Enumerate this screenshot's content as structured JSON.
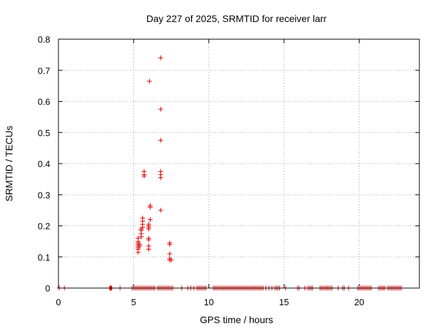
{
  "chart_data": {
    "type": "scatter",
    "title": "Day 227 of 2025, SRMTID for receiver larr",
    "xlabel": "GPS time / hours",
    "ylabel": "SRMTID / TECUs",
    "xlim": [
      0,
      24
    ],
    "ylim": [
      0,
      0.8
    ],
    "x_ticks": [
      0,
      5,
      10,
      15,
      20
    ],
    "x_tick_labels": [
      "0",
      "5",
      "10",
      "15",
      "20"
    ],
    "y_ticks": [
      0,
      0.1,
      0.2,
      0.3,
      0.4,
      0.5,
      0.6,
      0.7,
      0.8
    ],
    "y_tick_labels": [
      "0",
      "0.1",
      "0.2",
      "0.3",
      "0.4",
      "0.5",
      "0.6",
      "0.7",
      "0.8"
    ],
    "grid": true,
    "marker": "plus",
    "color": "#dd0000",
    "series": [
      {
        "name": "SRMTID",
        "points": [
          [
            5.3,
            0.115
          ],
          [
            5.3,
            0.125
          ],
          [
            5.3,
            0.13
          ],
          [
            5.3,
            0.135
          ],
          [
            5.3,
            0.14
          ],
          [
            5.3,
            0.145
          ],
          [
            5.3,
            0.15
          ],
          [
            5.3,
            0.16
          ],
          [
            5.4,
            0.135
          ],
          [
            5.4,
            0.14
          ],
          [
            5.5,
            0.165
          ],
          [
            5.5,
            0.175
          ],
          [
            5.5,
            0.185
          ],
          [
            5.5,
            0.19
          ],
          [
            5.6,
            0.195
          ],
          [
            5.6,
            0.205
          ],
          [
            5.6,
            0.215
          ],
          [
            5.6,
            0.225
          ],
          [
            5.7,
            0.36
          ],
          [
            5.7,
            0.365
          ],
          [
            5.7,
            0.375
          ],
          [
            6.0,
            0.125
          ],
          [
            6.0,
            0.135
          ],
          [
            6.0,
            0.155
          ],
          [
            6.0,
            0.16
          ],
          [
            6.0,
            0.19
          ],
          [
            6.0,
            0.195
          ],
          [
            6.0,
            0.2
          ],
          [
            6.0,
            0.205
          ],
          [
            6.1,
            0.22
          ],
          [
            6.1,
            0.26
          ],
          [
            6.1,
            0.265
          ],
          [
            6.05,
            0.665
          ],
          [
            6.8,
            0.25
          ],
          [
            6.8,
            0.355
          ],
          [
            6.8,
            0.365
          ],
          [
            6.8,
            0.375
          ],
          [
            6.8,
            0.475
          ],
          [
            6.8,
            0.575
          ],
          [
            6.8,
            0.74
          ],
          [
            7.4,
            0.09
          ],
          [
            7.4,
            0.095
          ],
          [
            7.4,
            0.11
          ],
          [
            7.4,
            0.14
          ],
          [
            7.4,
            0.145
          ],
          [
            7.5,
            0.09
          ]
        ],
        "zero_points_x": [
          0.05,
          0.4,
          3.4,
          3.45,
          3.5,
          3.55,
          4.1,
          4.9,
          5.0,
          5.1,
          5.2,
          5.3,
          5.4,
          5.5,
          5.6,
          5.7,
          5.8,
          5.9,
          6.0,
          6.1,
          6.2,
          6.3,
          6.4,
          6.6,
          6.7,
          6.8,
          6.9,
          7.0,
          7.1,
          7.2,
          7.3,
          7.4,
          7.5,
          7.6,
          8.2,
          8.6,
          8.8,
          9.0,
          9.2,
          9.3,
          9.4,
          9.5,
          9.6,
          9.7,
          9.8,
          10.3,
          10.4,
          10.5,
          10.6,
          10.7,
          10.8,
          10.9,
          11.0,
          11.1,
          11.2,
          11.3,
          11.4,
          11.5,
          11.6,
          11.7,
          11.8,
          11.9,
          12.0,
          12.1,
          12.2,
          12.3,
          12.4,
          12.5,
          12.6,
          12.7,
          12.8,
          12.9,
          13.0,
          13.1,
          13.2,
          13.3,
          13.4,
          13.5,
          13.6,
          13.8,
          14.0,
          14.2,
          14.4,
          14.5,
          14.6,
          14.7,
          15.1,
          15.9,
          16.0,
          16.4,
          16.6,
          16.7,
          16.8,
          16.9,
          17.4,
          17.5,
          17.6,
          17.7,
          17.8,
          17.9,
          18.0,
          18.1,
          18.2,
          18.6,
          18.9,
          19.0,
          19.3,
          19.9,
          20.0,
          20.1,
          20.2,
          20.3,
          20.4,
          20.5,
          20.6,
          20.7,
          20.8,
          21.3,
          21.4,
          21.5,
          21.6,
          21.7,
          21.9,
          22.0,
          22.1,
          22.2,
          22.3,
          22.4,
          22.5,
          22.6,
          22.7,
          22.8
        ]
      }
    ]
  }
}
